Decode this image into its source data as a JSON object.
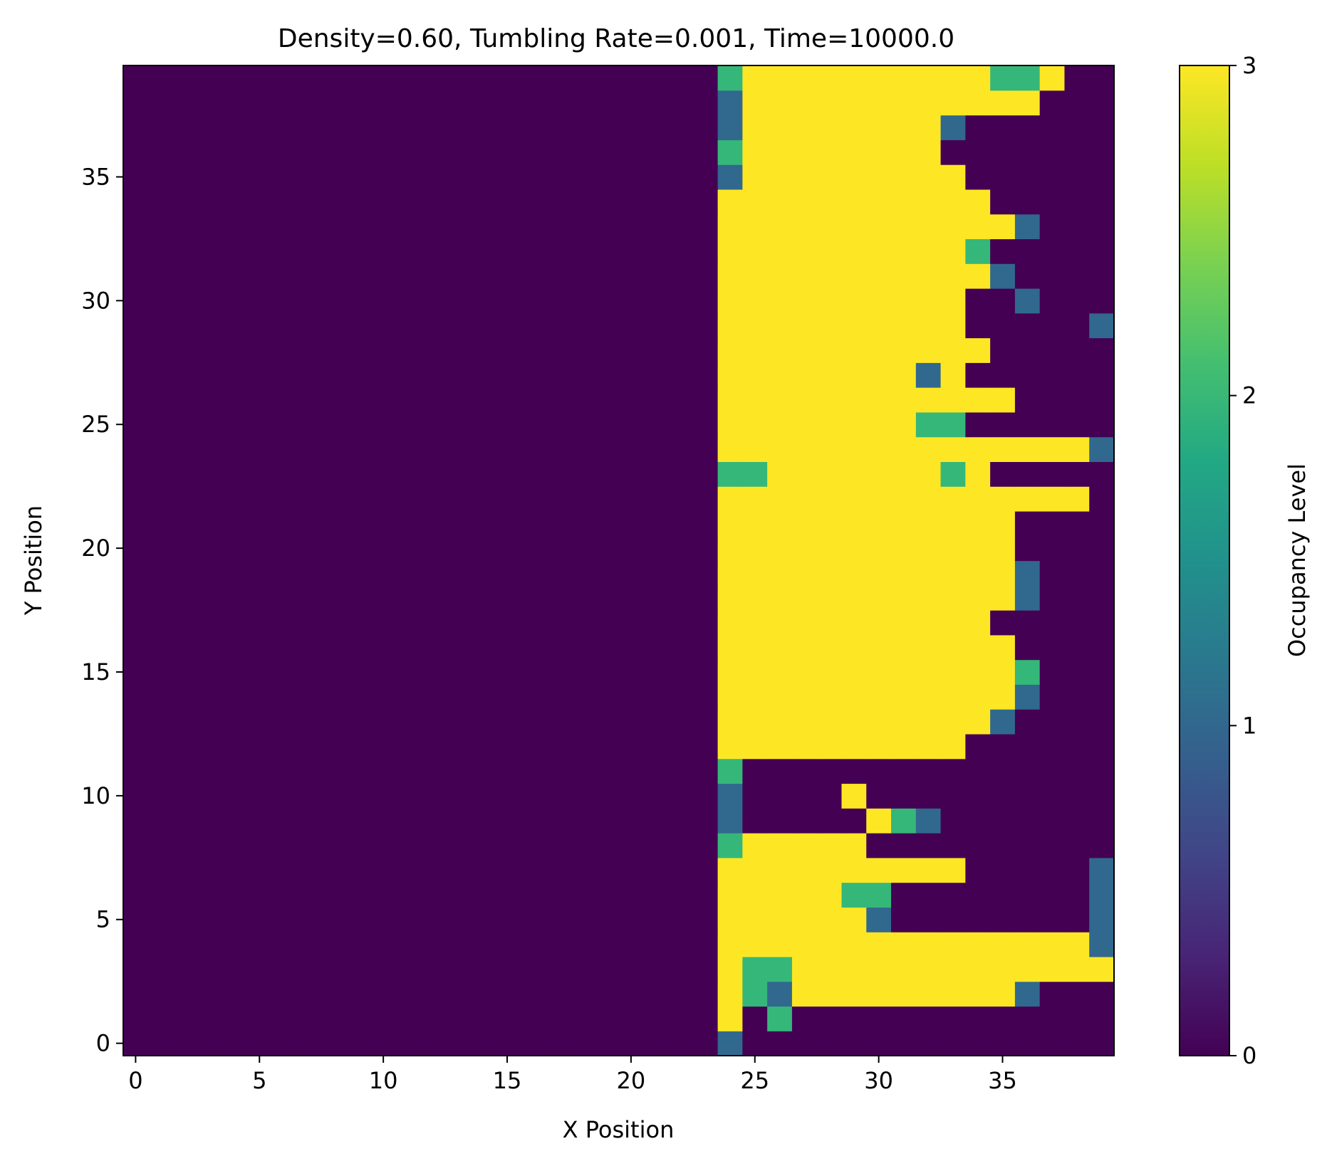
{
  "chart_data": {
    "type": "heatmap",
    "title": "Density=0.60, Tumbling Rate=0.001, Time=10000.0",
    "xlabel": "X Position",
    "ylabel": "Y Position",
    "colorbar_label": "Occupancy Level",
    "colormap": "viridis",
    "colors": {
      "0": "#440154",
      "1": "#31688e",
      "2": "#35b779",
      "3": "#fde725"
    },
    "vmin": 0,
    "vmax": 3,
    "x_ticks": [
      0,
      5,
      10,
      15,
      20,
      25,
      30,
      35
    ],
    "y_ticks": [
      0,
      5,
      10,
      15,
      20,
      25,
      30,
      35
    ],
    "colorbar_ticks": [
      0,
      1,
      2,
      3
    ],
    "grid_width": 40,
    "grid_height": 40,
    "xlim": [
      -0.5,
      39.5
    ],
    "ylim": [
      -0.5,
      39.5
    ],
    "grid": false,
    "rows_bottom_to_top": [
      "0000000000000000000000001000000000000000",
      "0000000000000000000000003020000000000000",
      "0000000000000000000000003213333333331000",
      "0000000000000000000000003223333333333333",
      "0000000000000000000000003333333333333331",
      "0000000000000000000000003333331000000001",
      "0000000000000000000000003333322000000001",
      "0000000000000000000000003333333333000001",
      "0000000000000000000000002333330000000000",
      "0000000000000000000000001000003210000000",
      "0000000000000000000000001000030000000000",
      "0000000000000000000000002000000000000000",
      "0000000000000000000000003333333333000000",
      "0000000000000000000000003333333333310000",
      "0000000000000000000000003333333333331000",
      "0000000000000000000000003333333333332000",
      "0000000000000000000000003333333333330000",
      "0000000000000000000000003333333333300000",
      "0000000000000000000000003333333333331000",
      "0000000000000000000000003333333333331000",
      "0000000000000000000000003333333333330000",
      "0000000000000000000000003333333333330000",
      "0000000000000000000000003333333333333330",
      "0000000000000000000000002233333332300000",
      "0000000000000000000000003333333333333331",
      "0000000000000000000000003333333322000000",
      "0000000000000000000000003333333333330000",
      "0000000000000000000000003333333313000000",
      "0000000000000000000000003333333333300000",
      "0000000000000000000000003333333333000001",
      "0000000000000000000000003333333333001000",
      "0000000000000000000000003333333333310000",
      "0000000000000000000000003333333333200000",
      "0000000000000000000000003333333333331000",
      "0000000000000000000000003333333333300000",
      "0000000000000000000000001333333333000000",
      "0000000000000000000000002333333330000000",
      "0000000000000000000000001333333331000000",
      "0000000000000000000000001333333333333000",
      "0000000000000000000000002333333333322300"
    ]
  }
}
